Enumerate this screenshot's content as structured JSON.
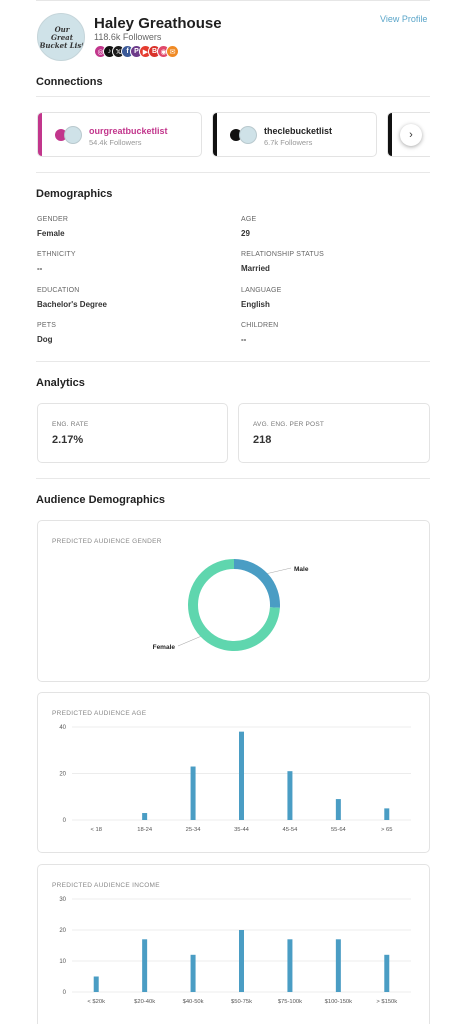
{
  "profile": {
    "avatar_lines": [
      "Our",
      "Great",
      "Bucket List"
    ],
    "name": "Haley Greathouse",
    "followers": "118.6k Followers",
    "view_profile": "View Profile",
    "social_icons": [
      {
        "icon": "instagram-icon",
        "color": "#c2368c",
        "glyph": "◎"
      },
      {
        "icon": "tiktok-icon",
        "color": "#111111",
        "glyph": "♪"
      },
      {
        "icon": "x-icon",
        "color": "#1b1b1b",
        "glyph": "𝕏"
      },
      {
        "icon": "facebook-icon",
        "color": "#3b5998",
        "glyph": "f"
      },
      {
        "icon": "pinterest-icon",
        "color": "#6d3b8a",
        "glyph": "P"
      },
      {
        "icon": "youtube-icon",
        "color": "#e53b2f",
        "glyph": "▶"
      },
      {
        "icon": "blog-icon",
        "color": "#d9322a",
        "glyph": "B"
      },
      {
        "icon": "rss-icon",
        "color": "#e0486a",
        "glyph": "◉"
      },
      {
        "icon": "email-icon",
        "color": "#f08a24",
        "glyph": "✉"
      }
    ]
  },
  "connections": {
    "title": "Connections",
    "cards": [
      {
        "handle": "ourgreatbucketlist",
        "followers": "54.4k Followers",
        "accent": "#c2368c",
        "handle_color": "#c2368c",
        "platform_icon": "instagram-icon"
      },
      {
        "handle": "theclebucketlist",
        "followers": "6.7k Followers",
        "accent": "#111111",
        "handle_color": "#222222",
        "platform_icon": "tiktok-icon"
      }
    ],
    "next_glyph": "›"
  },
  "demographics": {
    "title": "Demographics",
    "fields": [
      {
        "label": "GENDER",
        "value": "Female"
      },
      {
        "label": "AGE",
        "value": "29"
      },
      {
        "label": "ETHNICITY",
        "value": "--"
      },
      {
        "label": "RELATIONSHIP STATUS",
        "value": "Married"
      },
      {
        "label": "EDUCATION",
        "value": "Bachelor's Degree"
      },
      {
        "label": "LANGUAGE",
        "value": "English"
      },
      {
        "label": "PETS",
        "value": "Dog"
      },
      {
        "label": "CHILDREN",
        "value": "--"
      }
    ]
  },
  "analytics": {
    "title": "Analytics",
    "stats": [
      {
        "label": "ENG. RATE",
        "value": "2.17%"
      },
      {
        "label": "AVG. ENG. PER POST",
        "value": "218"
      }
    ]
  },
  "audience": {
    "title": "Audience Demographics",
    "colors": {
      "male": "#4a9dc4",
      "female": "#5fd6ae",
      "bar": "#4a9dc4",
      "grid": "#e6e6e6"
    }
  },
  "chart_data": [
    {
      "type": "pie",
      "title": "PREDICTED AUDIENCE GENDER",
      "labels": [
        "Male",
        "Female"
      ],
      "values": [
        26,
        74
      ]
    },
    {
      "type": "bar",
      "title": "PREDICTED AUDIENCE AGE",
      "categories": [
        "< 18",
        "18-24",
        "25-34",
        "35-44",
        "45-54",
        "55-64",
        "> 65"
      ],
      "values": [
        0,
        3,
        23,
        38,
        21,
        9,
        5
      ],
      "yticks": [
        "0",
        "20",
        "40"
      ],
      "ylim": [
        0,
        40
      ]
    },
    {
      "type": "bar",
      "title": "PREDICTED AUDIENCE INCOME",
      "categories": [
        "< $20k",
        "$20-40k",
        "$40-50k",
        "$50-75k",
        "$75-100k",
        "$100-150k",
        "> $150k"
      ],
      "values": [
        5,
        17,
        12,
        20,
        17,
        17,
        12
      ],
      "yticks": [
        "0",
        "10",
        "20",
        "30"
      ],
      "ylim": [
        0,
        30
      ]
    }
  ]
}
